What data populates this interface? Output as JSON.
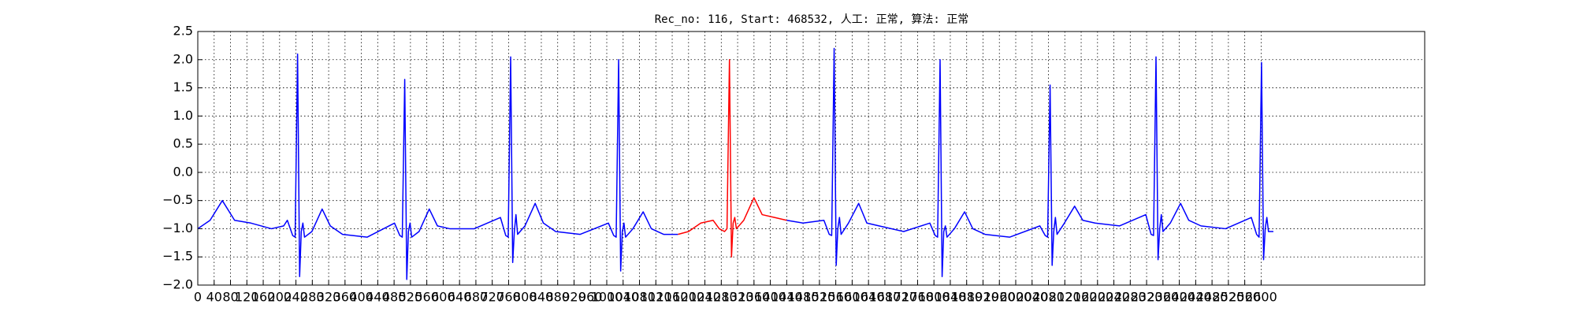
{
  "chart_data": {
    "type": "line",
    "title": "Rec_no: 116, Start: 468532, 人工: 正常, 算法: 正常",
    "x": [
      0,
      30,
      60,
      90,
      130,
      180,
      210,
      219,
      232,
      238,
      244,
      249,
      253,
      257,
      261,
      279,
      304,
      324,
      354,
      414,
      481,
      494,
      500,
      506,
      511,
      515,
      519,
      523,
      541,
      566,
      586,
      616,
      676,
      740,
      753,
      759,
      765,
      770,
      774,
      778,
      782,
      800,
      825,
      845,
      875,
      935,
      1004,
      1017,
      1023,
      1029,
      1034,
      1038,
      1042,
      1046,
      1064,
      1089,
      1109,
      1139,
      1174,
      1200,
      1230,
      1260,
      1275,
      1288,
      1294,
      1300,
      1305,
      1309,
      1313,
      1317,
      1335,
      1360,
      1380,
      1410,
      1440,
      1480,
      1531,
      1544,
      1550,
      1556,
      1561,
      1565,
      1569,
      1573,
      1591,
      1616,
      1636,
      1666,
      1726,
      1790,
      1803,
      1809,
      1815,
      1820,
      1824,
      1828,
      1832,
      1850,
      1875,
      1895,
      1925,
      1985,
      2059,
      2072,
      2078,
      2084,
      2089,
      2093,
      2097,
      2101,
      2119,
      2144,
      2164,
      2194,
      2254,
      2318,
      2331,
      2337,
      2343,
      2348,
      2352,
      2356,
      2360,
      2378,
      2403,
      2423,
      2453,
      2513,
      2576,
      2589,
      2595,
      2601,
      2606,
      2610,
      2614,
      2618,
      2630
    ],
    "series": [
      {
        "color": "#0000ff",
        "values": [
          -1.0,
          -0.85,
          -0.5,
          -0.85,
          -0.9,
          -1.0,
          -0.95,
          -0.85,
          -1.12,
          -1.15,
          2.1,
          -1.85,
          -1.05,
          -0.9,
          -1.15,
          -1.05,
          -0.65,
          -0.95,
          -1.1,
          -1.15,
          -0.9,
          -1.12,
          -1.15,
          1.65,
          -1.9,
          -1.05,
          -0.9,
          -1.15,
          -1.05,
          -0.65,
          -0.95,
          -1.0,
          -1.0,
          -0.8,
          -1.12,
          -1.15,
          2.05,
          -1.6,
          -1.05,
          -0.75,
          -1.1,
          -0.95,
          -0.55,
          -0.9,
          -1.05,
          -1.1,
          -0.9,
          -1.12,
          -1.15,
          2.0,
          -1.75,
          -1.05,
          -0.9,
          -1.15,
          -1.0,
          -0.7,
          -1.0,
          -1.1,
          -1.1,
          null,
          null,
          null,
          null,
          null,
          null,
          null,
          null,
          null,
          null,
          null,
          null,
          null,
          null,
          null,
          -0.85,
          -0.9,
          -0.85,
          -1.1,
          -1.12,
          2.2,
          -1.65,
          -1.0,
          -0.8,
          -1.1,
          -0.9,
          -0.55,
          -0.9,
          -0.95,
          -1.05,
          -0.9,
          -1.12,
          -1.15,
          2.0,
          -1.85,
          -1.05,
          -0.95,
          -1.15,
          -1.0,
          -0.7,
          -1.0,
          -1.1,
          -1.15,
          -0.95,
          -1.12,
          -1.15,
          1.55,
          -1.65,
          -1.05,
          -0.8,
          -1.1,
          -0.9,
          -0.6,
          -0.85,
          -0.9,
          -0.95,
          -0.75,
          -1.1,
          -1.12,
          2.05,
          -1.55,
          -1.0,
          -0.75,
          -1.05,
          -0.9,
          -0.55,
          -0.85,
          -0.95,
          -1.0,
          -0.8,
          -1.1,
          -1.15,
          1.95,
          -1.55,
          -1.0,
          -0.8,
          -1.05,
          -1.05
        ]
      },
      {
        "color": "#ff0000",
        "values": [
          null,
          null,
          null,
          null,
          null,
          null,
          null,
          null,
          null,
          null,
          null,
          null,
          null,
          null,
          null,
          null,
          null,
          null,
          null,
          null,
          null,
          null,
          null,
          null,
          null,
          null,
          null,
          null,
          null,
          null,
          null,
          null,
          null,
          null,
          null,
          null,
          null,
          null,
          null,
          null,
          null,
          null,
          null,
          null,
          null,
          null,
          null,
          null,
          null,
          null,
          null,
          null,
          null,
          null,
          null,
          null,
          null,
          null,
          -1.1,
          -1.05,
          -0.9,
          -0.85,
          -1.0,
          -1.05,
          -1.0,
          2.0,
          -1.5,
          -0.9,
          -0.8,
          -1.0,
          -0.85,
          -0.45,
          -0.75,
          -0.8,
          -0.85,
          null,
          null,
          null,
          null,
          null,
          null,
          null,
          null,
          null,
          null,
          null,
          null,
          null,
          null,
          null,
          null,
          null,
          null,
          null,
          null,
          null,
          null,
          null,
          null,
          null,
          null,
          null,
          null,
          null,
          null,
          null,
          null,
          null,
          null,
          null,
          null,
          null,
          null,
          null,
          null,
          null,
          null,
          null,
          null,
          null,
          null,
          null,
          null,
          null,
          null,
          null,
          null,
          null,
          null,
          null,
          null,
          null,
          null,
          null,
          null,
          null,
          null
        ]
      }
    ],
    "xlim": [
      0,
      3000
    ],
    "xticks": [
      0,
      40,
      80,
      120,
      160,
      200,
      240,
      280,
      320,
      360,
      400,
      440,
      480,
      520,
      560,
      600,
      640,
      680,
      720,
      760,
      800,
      840,
      880,
      920,
      960,
      1000,
      1040,
      1080,
      1120,
      1160,
      1200,
      1240,
      1280,
      1320,
      1360,
      1400,
      1440,
      1480,
      1520,
      1560,
      1600,
      1640,
      1680,
      1720,
      1760,
      1800,
      1840,
      1880,
      1920,
      1960,
      2000,
      2040,
      2080,
      2120,
      2160,
      2200,
      2240,
      2280,
      2320,
      2360,
      2400,
      2440,
      2480,
      2520,
      2560,
      2600
    ],
    "ylim": [
      -2.0,
      2.5
    ],
    "yticks": [
      {
        "value": -2.0,
        "label": "−2.0"
      },
      {
        "value": -1.5,
        "label": "−1.5"
      },
      {
        "value": -1.0,
        "label": "−1.0"
      },
      {
        "value": -0.5,
        "label": "−0.5"
      },
      {
        "value": 0,
        "label": "0.0"
      },
      {
        "value": 0.5,
        "label": "0.5"
      },
      {
        "value": 1.0,
        "label": "1.0"
      },
      {
        "value": 1.5,
        "label": "1.5"
      },
      {
        "value": 2.0,
        "label": "2.0"
      },
      {
        "value": 2.5,
        "label": "2.5"
      }
    ],
    "grid": true
  }
}
